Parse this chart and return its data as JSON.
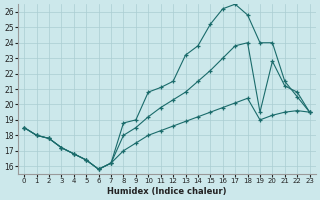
{
  "xlabel": "Humidex (Indice chaleur)",
  "xlim": [
    -0.5,
    23.5
  ],
  "ylim": [
    15.5,
    26.5
  ],
  "yticks": [
    16,
    17,
    18,
    19,
    20,
    21,
    22,
    23,
    24,
    25,
    26
  ],
  "xticks": [
    0,
    1,
    2,
    3,
    4,
    5,
    6,
    7,
    8,
    9,
    10,
    11,
    12,
    13,
    14,
    15,
    16,
    17,
    18,
    19,
    20,
    21,
    22,
    23
  ],
  "bg_color": "#cce8eb",
  "line_color": "#1a6b6b",
  "grid_color": "#aacdd2",
  "line1_x": [
    0,
    1,
    2,
    3,
    4,
    5,
    6,
    7,
    8,
    9,
    10,
    11,
    12,
    13,
    14,
    15,
    16,
    17,
    18,
    19,
    20,
    21,
    22,
    23
  ],
  "line1_y": [
    18.5,
    18.0,
    17.8,
    17.2,
    16.8,
    16.4,
    15.8,
    16.2,
    18.8,
    19.0,
    20.8,
    21.1,
    21.5,
    23.2,
    23.8,
    25.2,
    26.2,
    26.5,
    25.8,
    24.0,
    24.0,
    21.5,
    20.5,
    19.5
  ],
  "line2_x": [
    0,
    1,
    2,
    3,
    4,
    5,
    6,
    7,
    8,
    9,
    10,
    11,
    12,
    13,
    14,
    15,
    16,
    17,
    18,
    19,
    20,
    21,
    22,
    23
  ],
  "line2_y": [
    18.5,
    18.0,
    17.8,
    17.2,
    16.8,
    16.4,
    15.8,
    16.2,
    18.0,
    18.5,
    19.2,
    19.8,
    20.3,
    20.8,
    21.5,
    22.2,
    23.0,
    23.8,
    24.0,
    19.5,
    22.8,
    21.2,
    20.8,
    19.5
  ],
  "line3_x": [
    0,
    1,
    2,
    3,
    4,
    5,
    6,
    7,
    8,
    9,
    10,
    11,
    12,
    13,
    14,
    15,
    16,
    17,
    18,
    19,
    20,
    21,
    22,
    23
  ],
  "line3_y": [
    18.5,
    18.0,
    17.8,
    17.2,
    16.8,
    16.4,
    15.8,
    16.2,
    17.0,
    17.5,
    18.0,
    18.3,
    18.6,
    18.9,
    19.2,
    19.5,
    19.8,
    20.1,
    20.4,
    19.0,
    19.3,
    19.5,
    19.6,
    19.5
  ]
}
